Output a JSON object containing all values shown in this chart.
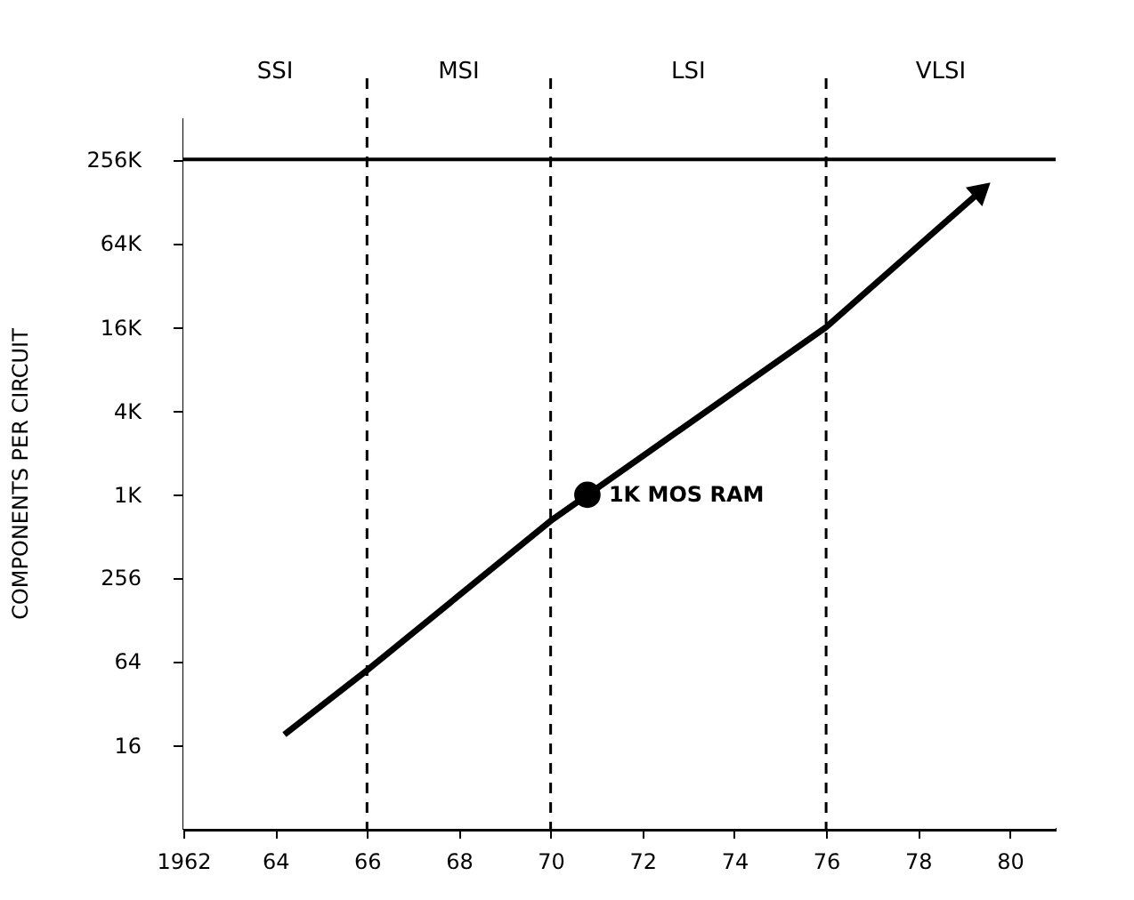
{
  "chart_data": {
    "type": "line",
    "ylabel": "COMPONENTS PER CIRCUIT",
    "xlim": [
      1962,
      1981
    ],
    "xticks": [
      {
        "value": 1962,
        "label": "1962"
      },
      {
        "value": 1964,
        "label": "64"
      },
      {
        "value": 1966,
        "label": "66"
      },
      {
        "value": 1968,
        "label": "68"
      },
      {
        "value": 1970,
        "label": "70"
      },
      {
        "value": 1972,
        "label": "72"
      },
      {
        "value": 1974,
        "label": "74"
      },
      {
        "value": 1976,
        "label": "76"
      },
      {
        "value": 1978,
        "label": "78"
      },
      {
        "value": 1980,
        "label": "80"
      }
    ],
    "ylim": [
      4,
      512000
    ],
    "yticks": [
      16,
      64,
      256,
      {
        "value": 1000,
        "label": "1K"
      },
      {
        "value": 4000,
        "label": "4K"
      },
      {
        "value": 16000,
        "label": "16K"
      },
      {
        "value": 64000,
        "label": "64K"
      },
      {
        "value": 256000,
        "label": "256K"
      }
    ],
    "log": "y",
    "grid": false,
    "line_style": "solid",
    "marker": "none",
    "series": [
      {
        "color": "#000000",
        "x": [
          1964.2,
          1966,
          1970,
          1976,
          1979.4
        ],
        "values": [
          19,
          55,
          650,
          16000,
          155000
        ]
      },
      {
        "type": "scatter",
        "color": "#000000",
        "marker": "circle",
        "x": [
          1970.8
        ],
        "values": [
          1000
        ]
      }
    ],
    "ref_lines": [
      {
        "axis": "x",
        "value": 1966,
        "line_style": "dashed",
        "color": "#000000"
      },
      {
        "axis": "x",
        "value": 1970,
        "line_style": "dashed",
        "color": "#000000"
      },
      {
        "axis": "x",
        "value": 1976,
        "line_style": "dashed",
        "color": "#000000"
      },
      {
        "axis": "y",
        "value": 256000,
        "line_style": "solid",
        "color": "#000000"
      }
    ],
    "bands": [
      {
        "axis": "x",
        "from": 1962,
        "to": 1966,
        "label": "SSI",
        "color": "#ffffff"
      },
      {
        "axis": "x",
        "from": 1966,
        "to": 1970,
        "label": "MSI",
        "color": "#ffffff"
      },
      {
        "axis": "x",
        "from": 1970,
        "to": 1976,
        "label": "LSI",
        "color": "#ffffff"
      },
      {
        "axis": "x",
        "from": 1976,
        "to": 1981,
        "label": "VLSI",
        "color": "#ffffff"
      }
    ],
    "annotations": [
      {
        "text": "1K MOS RAM",
        "x": 1970.8,
        "y": 1000
      }
    ]
  }
}
